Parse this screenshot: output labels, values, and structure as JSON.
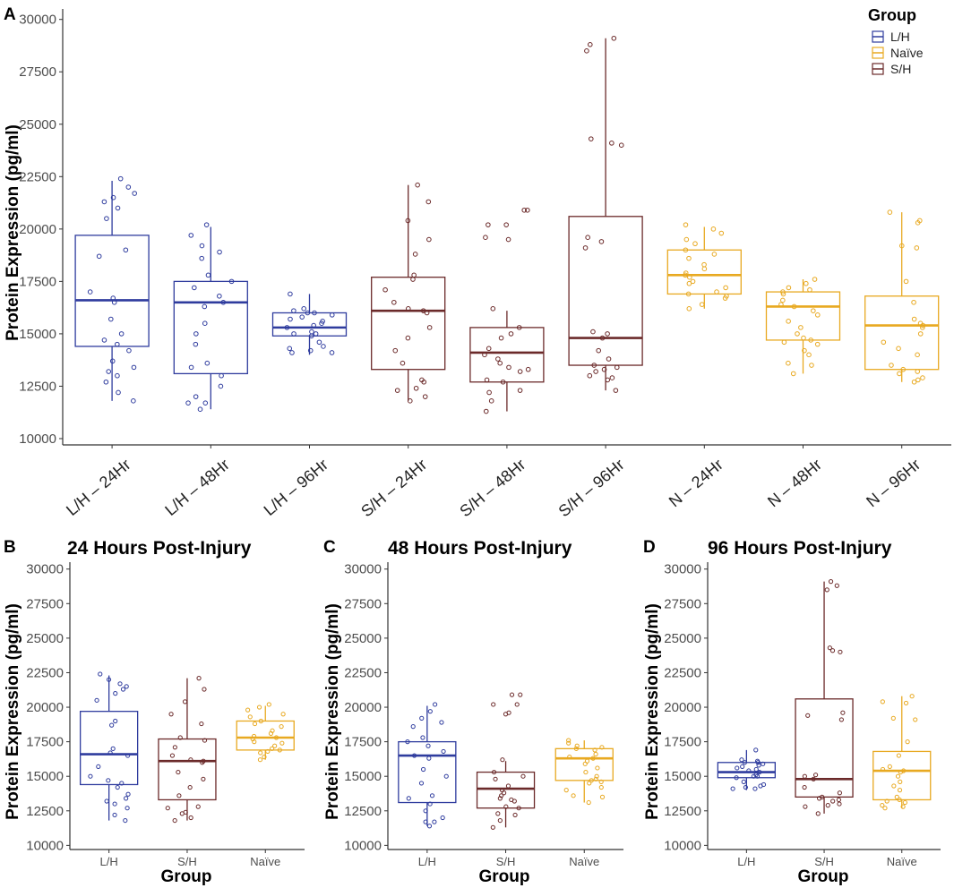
{
  "colors": {
    "L/H": "#2f3c9e",
    "Naïve": "#e8a921",
    "S/H": "#6b2a2a"
  },
  "legend": {
    "title": "Group",
    "items": [
      "L/H",
      "Naïve",
      "S/H"
    ]
  },
  "chart_data": [
    {
      "panel": "A",
      "type": "box",
      "title": "",
      "xlabel": "",
      "ylabel": "Protein Expression (pg/ml)",
      "ylim": [
        9700,
        30500
      ],
      "yticks": [
        10000,
        12500,
        15000,
        17500,
        20000,
        22500,
        25000,
        27500,
        30000
      ],
      "categories": [
        "L/H – 24Hr",
        "L/H – 48Hr",
        "L/H – 96Hr",
        "S/H – 24Hr",
        "S/H – 48Hr",
        "S/H – 96Hr",
        "N – 24Hr",
        "N – 48Hr",
        "N – 96Hr"
      ],
      "groups": [
        "L/H",
        "L/H",
        "L/H",
        "S/H",
        "S/H",
        "S/H",
        "Naïve",
        "Naïve",
        "Naïve"
      ],
      "boxes": [
        {
          "min": 11800,
          "q1": 14400,
          "median": 16600,
          "q3": 19700,
          "max": 22300
        },
        {
          "min": 11400,
          "q1": 13100,
          "median": 16500,
          "q3": 17500,
          "max": 20100
        },
        {
          "min": 14000,
          "q1": 14900,
          "median": 15300,
          "q3": 16000,
          "max": 16900
        },
        {
          "min": 11800,
          "q1": 13300,
          "median": 16100,
          "q3": 17700,
          "max": 22100
        },
        {
          "min": 11300,
          "q1": 12700,
          "median": 14100,
          "q3": 15300,
          "max": 16100
        },
        {
          "min": 12300,
          "q1": 13500,
          "median": 14800,
          "q3": 20600,
          "max": 29100
        },
        {
          "min": 16200,
          "q1": 16900,
          "median": 17800,
          "q3": 19000,
          "max": 20100
        },
        {
          "min": 13100,
          "q1": 14700,
          "median": 16300,
          "q3": 17000,
          "max": 17600
        },
        {
          "min": 12700,
          "q1": 13300,
          "median": 15400,
          "q3": 16800,
          "max": 20800
        }
      ],
      "points": [
        [
          21000,
          21700,
          21500,
          22400,
          22000,
          21300,
          20500,
          19000,
          18700,
          17000,
          16700,
          16500,
          15700,
          15000,
          14700,
          14500,
          14200,
          13700,
          13400,
          13200,
          13000,
          12700,
          12200,
          11800
        ],
        [
          20200,
          19700,
          19200,
          18900,
          18600,
          17800,
          17500,
          17200,
          16800,
          16500,
          16300,
          15500,
          15000,
          14500,
          13600,
          13400,
          13000,
          12500,
          12000,
          11700,
          11700,
          11400
        ],
        [
          16900,
          16200,
          16100,
          16000,
          16000,
          15900,
          15800,
          15700,
          15600,
          15500,
          15400,
          15300,
          15100,
          15000,
          15000,
          14900,
          14600,
          14400,
          14300,
          14200,
          14100,
          14100
        ],
        [
          22100,
          21300,
          20400,
          19500,
          18800,
          17800,
          17600,
          17100,
          16500,
          16200,
          16100,
          16000,
          15300,
          14800,
          14200,
          13600,
          12800,
          12700,
          12400,
          12300,
          12000,
          11800
        ],
        [
          20900,
          20900,
          20200,
          20200,
          19600,
          19500,
          16200,
          15300,
          15000,
          14800,
          14300,
          14000,
          13800,
          13600,
          13400,
          13300,
          13200,
          12800,
          12700,
          12300,
          12200,
          11800,
          11300
        ],
        [
          29100,
          28800,
          28500,
          24300,
          24100,
          24000,
          19600,
          19400,
          19100,
          15100,
          15000,
          14800,
          14200,
          13800,
          13500,
          13400,
          13300,
          13200,
          13000,
          12900,
          12800,
          12300
        ],
        [
          20200,
          20000,
          19800,
          19500,
          19300,
          19000,
          18800,
          18600,
          18300,
          18100,
          17900,
          17800,
          17700,
          17500,
          17400,
          17200,
          17000,
          16900,
          16800,
          16700,
          16400,
          16200
        ],
        [
          17600,
          17400,
          17200,
          17100,
          17000,
          16900,
          16600,
          16400,
          16300,
          16100,
          15900,
          15600,
          15300,
          15000,
          14800,
          14700,
          14600,
          14500,
          14200,
          14000,
          13600,
          13500,
          13100
        ],
        [
          20800,
          20400,
          20300,
          19200,
          19100,
          17500,
          16500,
          15700,
          15500,
          15400,
          15300,
          15000,
          14600,
          14300,
          14000,
          13500,
          13300,
          13200,
          13100,
          12900,
          12800,
          12700
        ]
      ]
    },
    {
      "panel": "B",
      "type": "box",
      "title": "24 Hours Post-Injury",
      "xlabel": "Group",
      "ylabel": "Protein Expression (pg/ml)",
      "ylim": [
        9700,
        30500
      ],
      "yticks": [
        10000,
        12500,
        15000,
        17500,
        20000,
        22500,
        25000,
        27500,
        30000
      ],
      "categories": [
        "L/H",
        "S/H",
        "Naïve"
      ],
      "groups": [
        "L/H",
        "S/H",
        "Naïve"
      ],
      "boxes": [
        {
          "min": 11800,
          "q1": 14400,
          "median": 16600,
          "q3": 19700,
          "max": 22300
        },
        {
          "min": 11800,
          "q1": 13300,
          "median": 16100,
          "q3": 17700,
          "max": 22100
        },
        {
          "min": 16200,
          "q1": 16900,
          "median": 17800,
          "q3": 19000,
          "max": 20100
        }
      ],
      "points": [
        [
          21000,
          21700,
          21500,
          22400,
          22000,
          21300,
          20500,
          19000,
          18700,
          17000,
          16700,
          16500,
          15700,
          15000,
          14700,
          14500,
          14200,
          13700,
          13400,
          13200,
          13000,
          12700,
          12200,
          11800
        ],
        [
          22100,
          21300,
          20400,
          19500,
          18800,
          17800,
          17600,
          17100,
          16500,
          16200,
          16100,
          16000,
          15300,
          14800,
          14200,
          13600,
          12800,
          12700,
          12400,
          12300,
          12000,
          11800
        ],
        [
          20200,
          20000,
          19800,
          19500,
          19300,
          19000,
          18800,
          18600,
          18300,
          18100,
          17900,
          17800,
          17700,
          17500,
          17400,
          17200,
          17000,
          16900,
          16800,
          16700,
          16400,
          16200
        ]
      ]
    },
    {
      "panel": "C",
      "type": "box",
      "title": "48 Hours Post-Injury",
      "xlabel": "Group",
      "ylabel": "Protein Expression (pg/ml)",
      "ylim": [
        9700,
        30500
      ],
      "yticks": [
        10000,
        12500,
        15000,
        17500,
        20000,
        22500,
        25000,
        27500,
        30000
      ],
      "categories": [
        "L/H",
        "S/H",
        "Naïve"
      ],
      "groups": [
        "L/H",
        "S/H",
        "Naïve"
      ],
      "boxes": [
        {
          "min": 11400,
          "q1": 13100,
          "median": 16500,
          "q3": 17500,
          "max": 20100
        },
        {
          "min": 11300,
          "q1": 12700,
          "median": 14100,
          "q3": 15300,
          "max": 16100
        },
        {
          "min": 13100,
          "q1": 14700,
          "median": 16300,
          "q3": 17000,
          "max": 17600
        }
      ],
      "points": [
        [
          20200,
          19700,
          19200,
          18900,
          18600,
          17800,
          17500,
          17200,
          16800,
          16500,
          16300,
          15500,
          15000,
          14500,
          13600,
          13400,
          13000,
          12500,
          12000,
          11700,
          11700,
          11400
        ],
        [
          20900,
          20900,
          20200,
          20200,
          19600,
          19500,
          16200,
          15300,
          15000,
          14800,
          14300,
          14000,
          13800,
          13600,
          13400,
          13300,
          13200,
          12800,
          12700,
          12300,
          12200,
          11800,
          11300
        ],
        [
          17600,
          17400,
          17200,
          17100,
          17000,
          16900,
          16600,
          16400,
          16300,
          16100,
          15900,
          15600,
          15300,
          15000,
          14800,
          14700,
          14600,
          14500,
          14200,
          14000,
          13600,
          13500,
          13100
        ]
      ]
    },
    {
      "panel": "D",
      "type": "box",
      "title": "96 Hours Post-Injury",
      "xlabel": "Group",
      "ylabel": "Protein Expression (pg/ml)",
      "ylim": [
        9700,
        30500
      ],
      "yticks": [
        10000,
        12500,
        15000,
        17500,
        20000,
        22500,
        25000,
        27500,
        30000
      ],
      "categories": [
        "L/H",
        "S/H",
        "Naïve"
      ],
      "groups": [
        "L/H",
        "S/H",
        "Naïve"
      ],
      "boxes": [
        {
          "min": 14000,
          "q1": 14900,
          "median": 15300,
          "q3": 16000,
          "max": 16900
        },
        {
          "min": 12300,
          "q1": 13500,
          "median": 14800,
          "q3": 20600,
          "max": 29100
        },
        {
          "min": 12700,
          "q1": 13300,
          "median": 15400,
          "q3": 16800,
          "max": 20800
        }
      ],
      "points": [
        [
          16900,
          16200,
          16100,
          16000,
          16000,
          15900,
          15800,
          15700,
          15600,
          15500,
          15400,
          15300,
          15100,
          15000,
          15000,
          14900,
          14600,
          14400,
          14300,
          14200,
          14100,
          14100
        ],
        [
          29100,
          28800,
          28500,
          24300,
          24100,
          24000,
          19600,
          19400,
          19100,
          15100,
          15000,
          14800,
          14200,
          13800,
          13500,
          13400,
          13300,
          13200,
          13000,
          12900,
          12800,
          12300
        ],
        [
          20800,
          20400,
          20300,
          19200,
          19100,
          17500,
          16500,
          15700,
          15500,
          15400,
          15300,
          15000,
          14600,
          14300,
          14000,
          13500,
          13300,
          13200,
          13100,
          12900,
          12800,
          12700
        ]
      ]
    }
  ]
}
